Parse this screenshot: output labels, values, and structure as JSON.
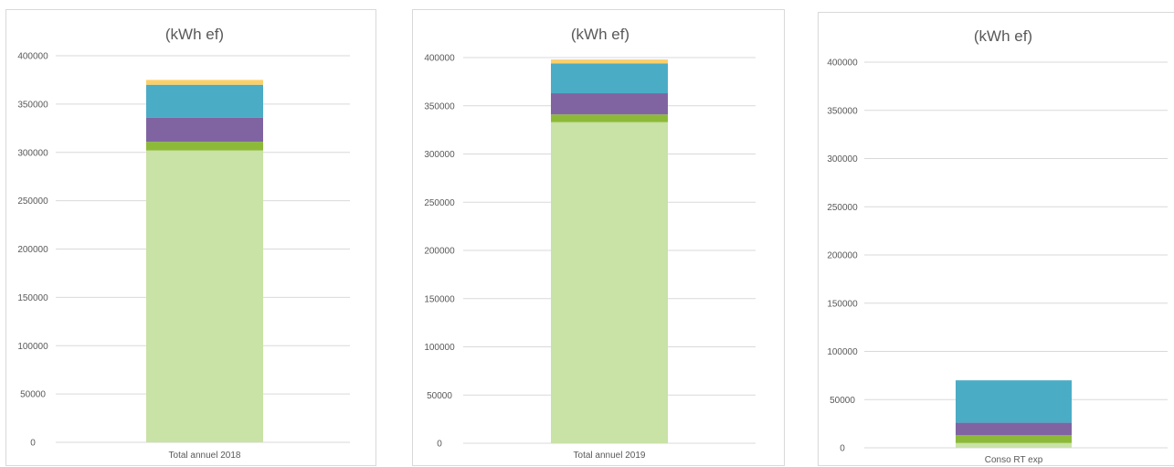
{
  "colors": {
    "seg1": "#c9e2a6",
    "seg2": "#8cba38",
    "seg3": "#8064a2",
    "seg4": "#4bacc6",
    "seg5": "#fcd068"
  },
  "chart_data": [
    {
      "type": "bar",
      "stacked": true,
      "title": "(kWh ef)",
      "categories": [
        "Total annuel 2018"
      ],
      "ylim": [
        0,
        400000
      ],
      "yticks": [
        "0",
        "50000",
        "100000",
        "150000",
        "200000",
        "250000",
        "300000",
        "350000",
        "400000"
      ],
      "grid": true,
      "series": [
        {
          "values": [
            302000
          ],
          "color": "#c9e2a6"
        },
        {
          "values": [
            9000
          ],
          "color": "#8cba38"
        },
        {
          "values": [
            25000
          ],
          "color": "#8064a2"
        },
        {
          "values": [
            34000
          ],
          "color": "#4bacc6"
        },
        {
          "values": [
            5000
          ],
          "color": "#fcd068"
        }
      ]
    },
    {
      "type": "bar",
      "stacked": true,
      "title": "(kWh ef)",
      "categories": [
        "Total annuel 2019"
      ],
      "ylim": [
        0,
        400000
      ],
      "yticks": [
        "0",
        "50000",
        "100000",
        "150000",
        "200000",
        "250000",
        "300000",
        "350000",
        "400000"
      ],
      "grid": true,
      "series": [
        {
          "values": [
            333000
          ],
          "color": "#c9e2a6"
        },
        {
          "values": [
            8000
          ],
          "color": "#8cba38"
        },
        {
          "values": [
            22000
          ],
          "color": "#8064a2"
        },
        {
          "values": [
            31000
          ],
          "color": "#4bacc6"
        },
        {
          "values": [
            4000
          ],
          "color": "#fcd068"
        }
      ]
    },
    {
      "type": "bar",
      "stacked": true,
      "title": "(kWh ef)",
      "categories": [
        "Conso RT exp"
      ],
      "ylim": [
        0,
        400000
      ],
      "yticks": [
        "0",
        "50000",
        "100000",
        "150000",
        "200000",
        "250000",
        "300000",
        "350000",
        "400000"
      ],
      "grid": true,
      "series": [
        {
          "values": [
            5000
          ],
          "color": "#c9e2a6"
        },
        {
          "values": [
            8000
          ],
          "color": "#8cba38"
        },
        {
          "values": [
            13000
          ],
          "color": "#8064a2"
        },
        {
          "values": [
            44000
          ],
          "color": "#4bacc6"
        },
        {
          "values": [
            0
          ],
          "color": "#fcd068"
        }
      ]
    }
  ]
}
